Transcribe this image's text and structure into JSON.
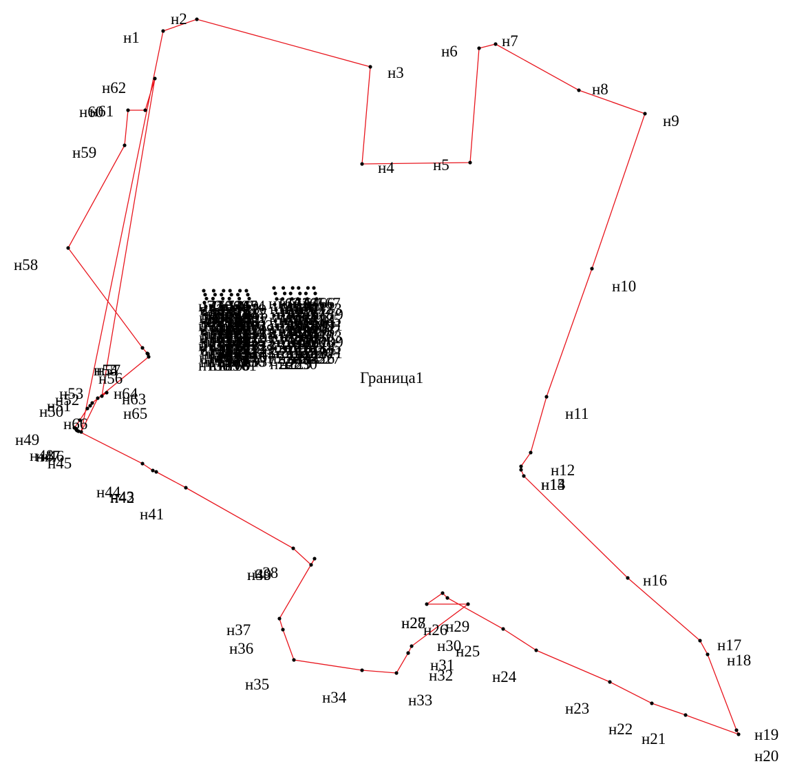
{
  "map": {
    "title": "Граница1",
    "boundary_color": "#e8141c",
    "point_color": "#000000",
    "points": [
      "н1",
      "н2",
      "н3",
      "н4",
      "н5",
      "н6",
      "н7",
      "н8",
      "н9",
      "н10",
      "н11",
      "н12",
      "н13",
      "н14",
      "н15",
      "н16",
      "н17",
      "н18",
      "н19",
      "н20",
      "н21",
      "н22",
      "н23",
      "н24",
      "н25",
      "н26",
      "н27",
      "н28",
      "н29",
      "н30",
      "н31",
      "н32",
      "н33",
      "н34",
      "н35",
      "н36",
      "н37",
      "н38",
      "н39",
      "н40",
      "н41",
      "н42",
      "н43",
      "н44",
      "н45",
      "н46",
      "н47",
      "н48",
      "н49",
      "н50",
      "н51",
      "н52",
      "н53",
      "н54",
      "н55",
      "н56",
      "н57",
      "н58",
      "н59",
      "н60",
      "н61",
      "н62",
      "н63",
      "н64",
      "н65",
      "н66"
    ],
    "cluster_left_labels": [
      "н72",
      "н70",
      "н71",
      "н68",
      "н69",
      "н74",
      "н73",
      "н75",
      "н76",
      "н77",
      "н78",
      "н79",
      "н80",
      "н81",
      "н82",
      "н83",
      "н84",
      "н85",
      "н86",
      "н87",
      "н88",
      "н89",
      "н90",
      "н91",
      "н92",
      "н93",
      "н94",
      "н95",
      "н96",
      "н97",
      "н98",
      "н99",
      "н100",
      "н101",
      "н102",
      "н103",
      "н104",
      "н105",
      "н106",
      "н107",
      "н108",
      "н109",
      "н110",
      "н111",
      "н112",
      "н113",
      "н114",
      "н115",
      "н116",
      "н117",
      "н118",
      "н119",
      "н120",
      "н121",
      "н122",
      "н123",
      "н124",
      "н125",
      "н126",
      "н127",
      "н128",
      "н129",
      "н130",
      "н131",
      "н132",
      "н133",
      "н134",
      "н135",
      "н136",
      "н137",
      "н138",
      "н139",
      "н140",
      "н141",
      "н142",
      "н143",
      "н144",
      "н145",
      "н146",
      "н147",
      "н148",
      "н149",
      "н150",
      "н151",
      "н152",
      "н153",
      "н154",
      "н155",
      "н156",
      "н157",
      "н158",
      "н159",
      "н160",
      "н161"
    ],
    "cluster_right_labels": [
      "н162",
      "н163",
      "н164",
      "н165",
      "н166",
      "н167",
      "н168",
      "н169",
      "н170",
      "н171",
      "н172",
      "н173",
      "н174",
      "н175",
      "н176",
      "н177",
      "н178",
      "н179",
      "н180",
      "н181",
      "н182",
      "н183",
      "н184",
      "н185",
      "н186",
      "н187",
      "н188",
      "н189",
      "н190",
      "н191",
      "н192",
      "н193",
      "н194",
      "н195",
      "н196",
      "н197",
      "н198",
      "н199",
      "н200",
      "н201",
      "н202",
      "н203",
      "н204",
      "н205",
      "н206",
      "н207",
      "н208",
      "н209",
      "н210",
      "н211",
      "н212",
      "н213",
      "н214",
      "н215",
      "н216",
      "н217",
      "н218",
      "н219",
      "н220",
      "н221",
      "н222",
      "н223",
      "н224",
      "н225",
      "н226",
      "н227",
      "н228",
      "н229",
      "н230"
    ]
  }
}
